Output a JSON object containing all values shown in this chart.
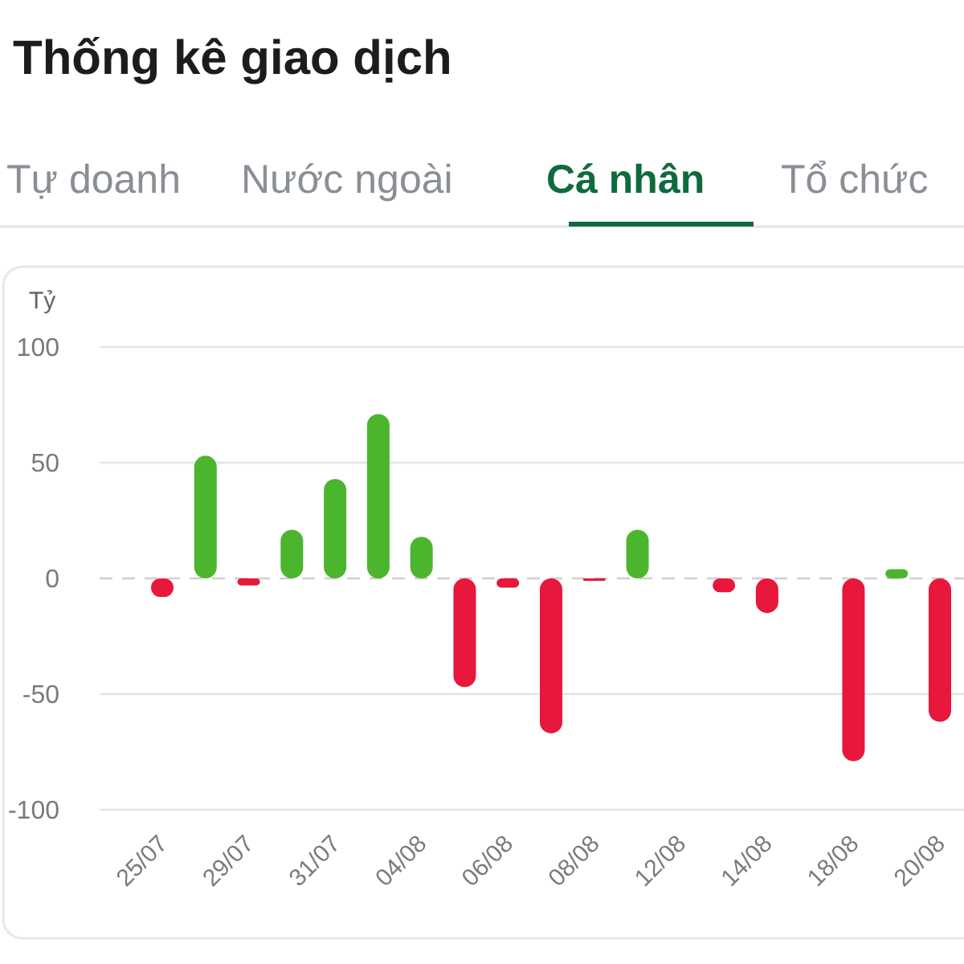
{
  "chart_data": {
    "type": "bar",
    "title": "Thống kê giao dịch",
    "annotations": [
      "Tự doanh",
      "Nước ngoài",
      "Cá nhân",
      "Tổ chức"
    ],
    "ylabel": "Tỷ",
    "categories": [
      "25/07",
      null,
      "29/07",
      null,
      "31/07",
      null,
      "04/08",
      null,
      "06/08",
      null,
      "08/08",
      null,
      "12/08",
      null,
      "14/08",
      null,
      "18/08",
      null,
      "20/08"
    ],
    "values": [
      -8,
      53,
      -3,
      21,
      43,
      71,
      18,
      -47,
      -4,
      -67,
      -1,
      21,
      0,
      -6,
      -15,
      0,
      -79,
      4,
      -62
    ],
    "colors": [
      "#e8173c",
      "#4cb52e",
      "#e8173c",
      "#4cb52e",
      "#4cb52e",
      "#4cb52e",
      "#4cb52e",
      "#e8173c",
      "#e8173c",
      "#e8173c",
      "#e8173c",
      "#4cb52e",
      "#4cb52e",
      "#e8173c",
      "#e8173c",
      "#4cb52e",
      "#e8173c",
      "#4cb52e",
      "#e8173c"
    ],
    "ylim": [
      -100,
      100
    ],
    "yticks": [
      -100,
      -50,
      0,
      50,
      100
    ],
    "grid": "y",
    "ref_lines": [
      {
        "axis": "y",
        "value": 0,
        "color": "#cfcfcf",
        "line_style": "dashed"
      }
    ]
  }
}
